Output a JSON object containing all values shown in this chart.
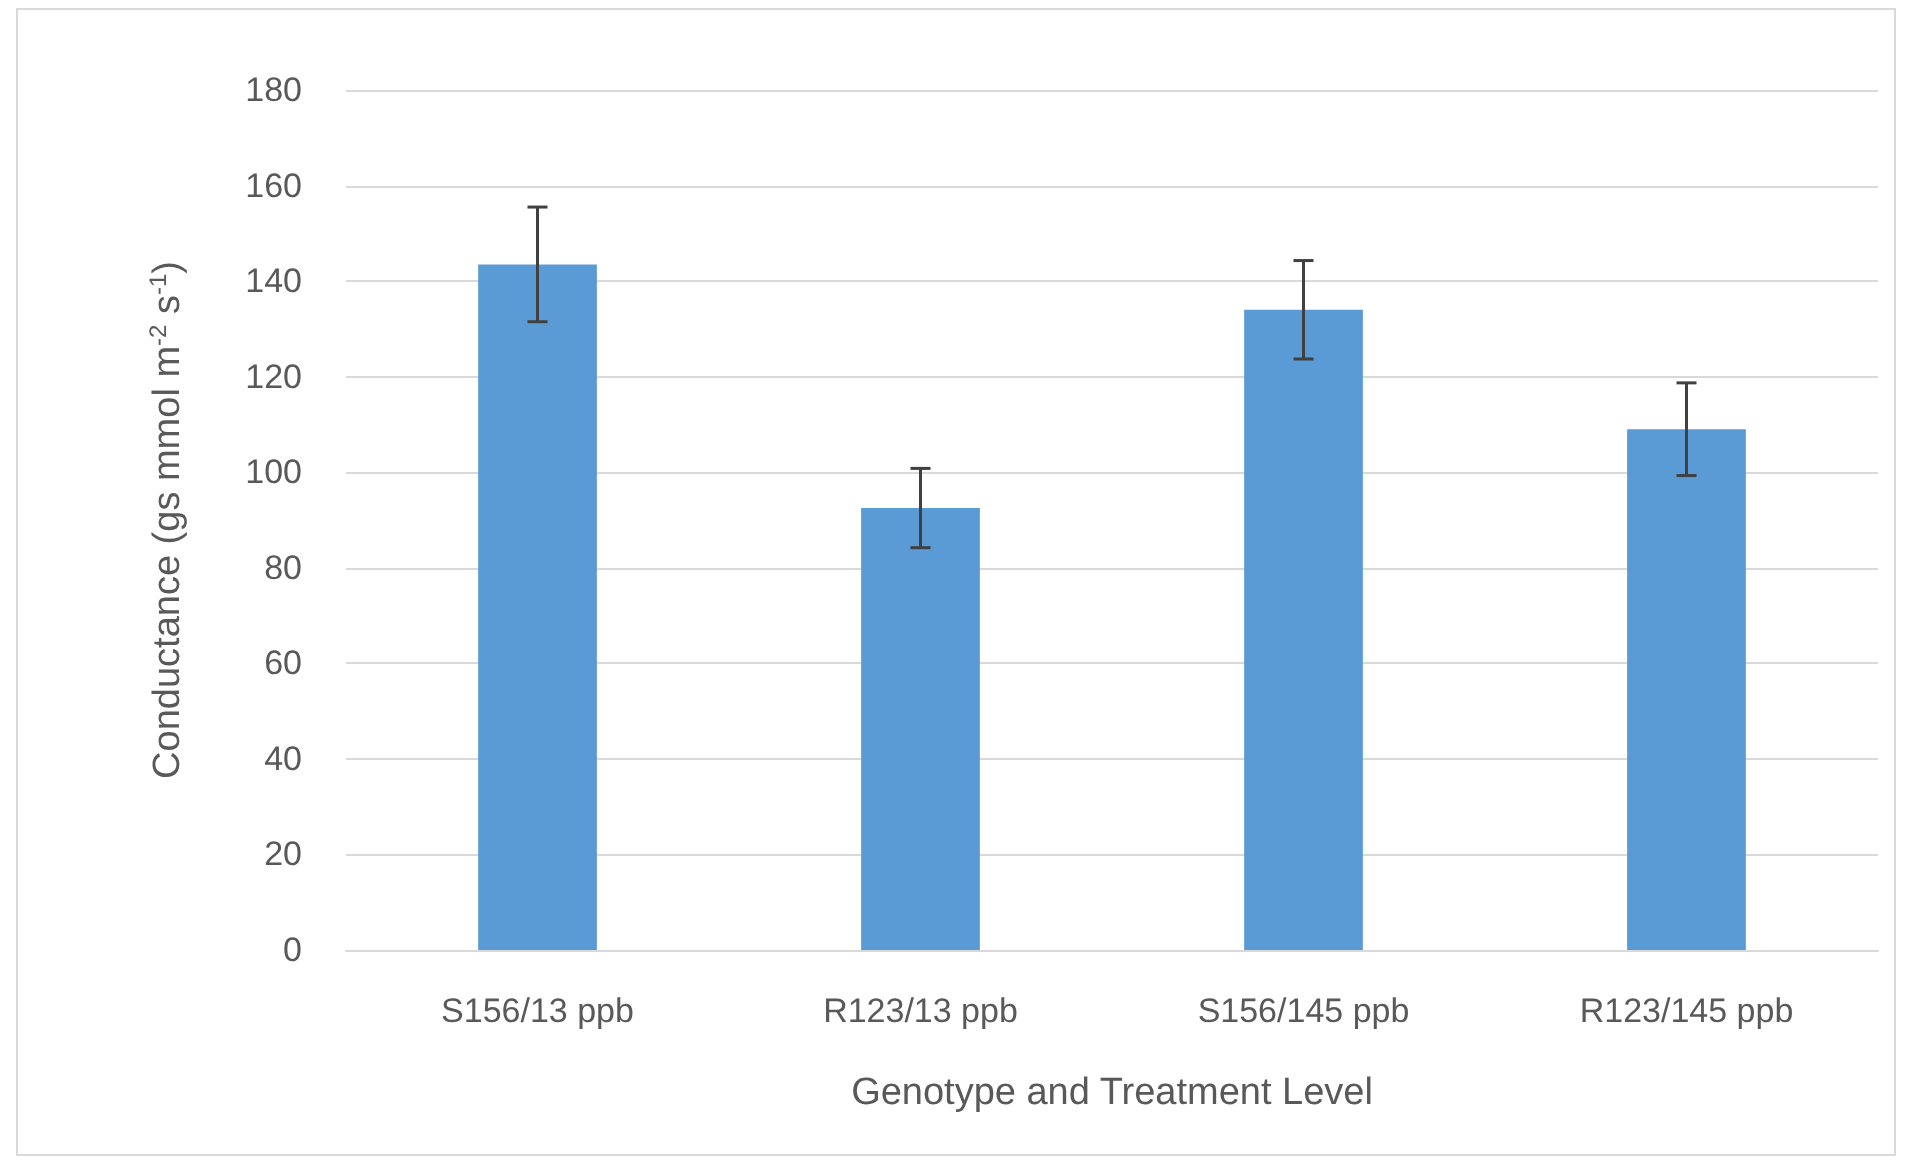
{
  "chart_data": {
    "type": "bar",
    "xlabel": "Genotype and Treatment Level",
    "ylabel": "Conductance (gs mmol m$^{-2}$ s$^{-1}$)",
    "categories": [
      "S156/13 ppb",
      "R123/13 ppb",
      "S156/145 ppb",
      "R123/145 ppb"
    ],
    "values": [
      143.5,
      92.5,
      134,
      109
    ],
    "errors": [
      12,
      8.3,
      10.3,
      9.7
    ],
    "color": "#5b9bd5",
    "ylim": [
      0,
      180
    ],
    "yticks": [
      0,
      20,
      40,
      60,
      80,
      100,
      120,
      140,
      160,
      180
    ],
    "grid": "y"
  }
}
